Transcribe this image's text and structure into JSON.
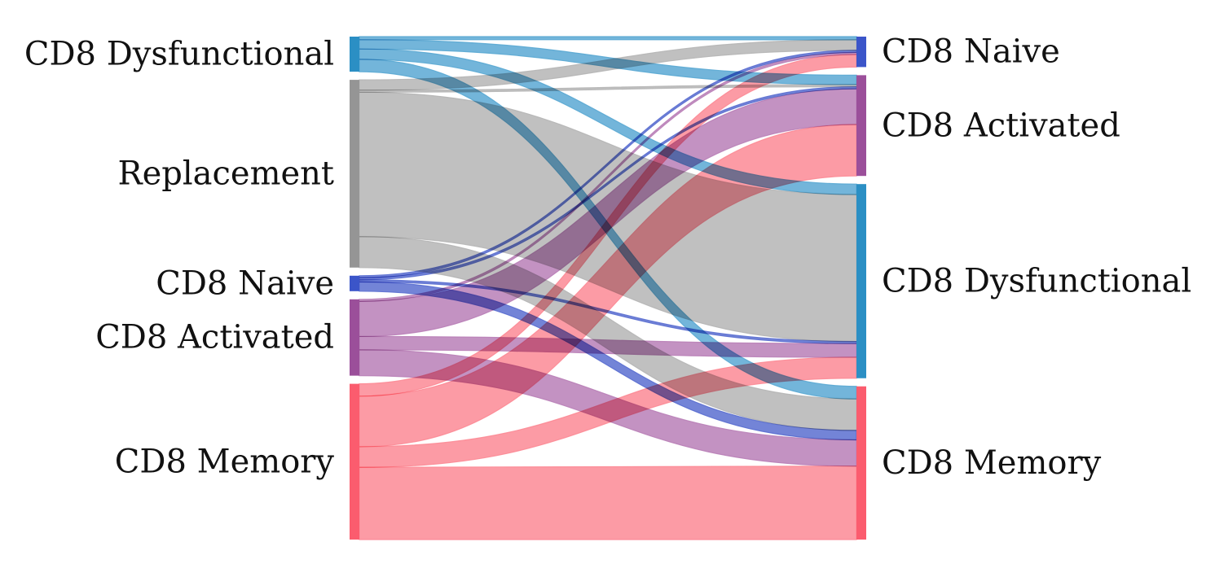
{
  "chart_data": {
    "type": "sankey",
    "title": "",
    "source_nodes": [
      {
        "id": "s_dys",
        "label": "CD8 Dysfunctional",
        "color": "#2b8fc4"
      },
      {
        "id": "s_rep",
        "label": "Replacement",
        "color": "#959595"
      },
      {
        "id": "s_nai",
        "label": "CD8 Naive",
        "color": "#3b55c9"
      },
      {
        "id": "s_act",
        "label": "CD8 Activated",
        "color": "#9b4f9a"
      },
      {
        "id": "s_mem",
        "label": "CD8 Memory",
        "color": "#fb5c6e"
      }
    ],
    "target_nodes": [
      {
        "id": "t_nai",
        "label": "CD8 Naive",
        "color": "#3b55c9"
      },
      {
        "id": "t_act",
        "label": "CD8 Activated",
        "color": "#9b4f9a"
      },
      {
        "id": "t_dys",
        "label": "CD8 Dysfunctional",
        "color": "#2b8fc4"
      },
      {
        "id": "t_mem",
        "label": "CD8 Memory",
        "color": "#fb5c6e"
      }
    ],
    "link_colors": {
      "s_dys": "#5aa8d3",
      "s_rep": "#b5b5b5",
      "s_nai": "#5a6ed0",
      "s_act": "#b97fb7",
      "s_mem": "#fc8a95"
    },
    "links": [
      {
        "source": "s_dys",
        "target": "t_nai",
        "value": 1.5
      },
      {
        "source": "s_dys",
        "target": "t_act",
        "value": 4.5
      },
      {
        "source": "s_dys",
        "target": "t_dys",
        "value": 5
      },
      {
        "source": "s_dys",
        "target": "t_mem",
        "value": 6
      },
      {
        "source": "s_rep",
        "target": "t_nai",
        "value": 5
      },
      {
        "source": "s_rep",
        "target": "t_act",
        "value": 1
      },
      {
        "source": "s_rep",
        "target": "t_dys",
        "value": 70
      },
      {
        "source": "s_rep",
        "target": "t_mem",
        "value": 15
      },
      {
        "source": "s_nai",
        "target": "t_nai",
        "value": 1
      },
      {
        "source": "s_nai",
        "target": "t_act",
        "value": 1
      },
      {
        "source": "s_nai",
        "target": "t_dys",
        "value": 1
      },
      {
        "source": "s_nai",
        "target": "t_mem",
        "value": 4.5
      },
      {
        "source": "s_act",
        "target": "t_nai",
        "value": 1
      },
      {
        "source": "s_act",
        "target": "t_act",
        "value": 17
      },
      {
        "source": "s_act",
        "target": "t_dys",
        "value": 6.5
      },
      {
        "source": "s_act",
        "target": "t_mem",
        "value": 12.5
      },
      {
        "source": "s_mem",
        "target": "t_nai",
        "value": 6
      },
      {
        "source": "s_mem",
        "target": "t_act",
        "value": 24.5
      },
      {
        "source": "s_mem",
        "target": "t_dys",
        "value": 10
      },
      {
        "source": "s_mem",
        "target": "t_mem",
        "value": 35
      }
    ]
  }
}
